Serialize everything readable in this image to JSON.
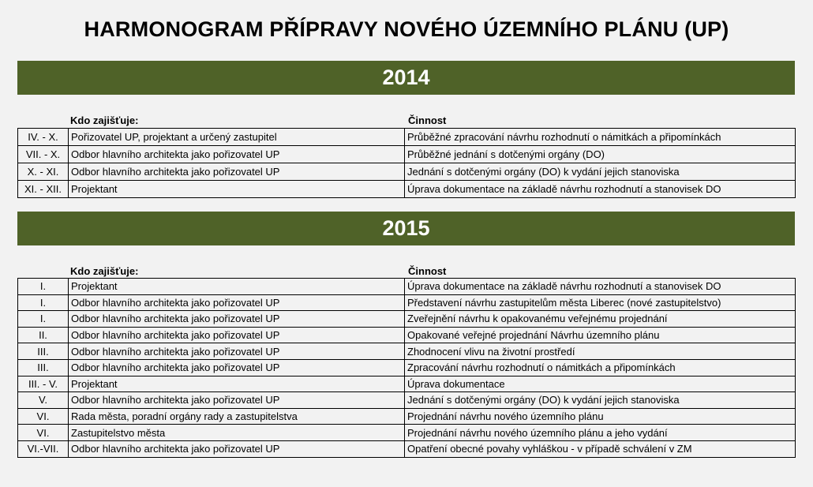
{
  "title": "HARMONOGRAM PŘÍPRAVY NOVÉHO ÚZEMNÍHO PLÁNU (UP)",
  "accent_color": "#4f6228",
  "sections": [
    {
      "year": "2014",
      "col_who": "Kdo zajišťuje:",
      "col_activity": "Činnost",
      "rows": [
        {
          "period": "IV. - X.",
          "who": "Pořizovatel UP, projektant a určený zastupitel",
          "activity": "Průběžné zpracování návrhu rozhodnutí o námitkách a připomínkách"
        },
        {
          "period": "VII. - X.",
          "who": "Odbor hlavního architekta jako pořizovatel UP",
          "activity": "Průběžné jednání s dotčenými orgány (DO)"
        },
        {
          "period": "X. - XI.",
          "who": "Odbor hlavního architekta jako pořizovatel UP",
          "activity": "Jednání s dotčenými orgány (DO) k vydání jejich stanoviska"
        },
        {
          "period": "XI. - XII.",
          "who": "Projektant",
          "activity": "Úprava dokumentace na základě návrhu rozhodnutí a stanovisek DO"
        }
      ]
    },
    {
      "year": "2015",
      "col_who": "Kdo zajišťuje:",
      "col_activity": "Činnost",
      "rows": [
        {
          "period": "I.",
          "who": "Projektant",
          "activity": "Úprava dokumentace na základě návrhu rozhodnutí a stanovisek DO"
        },
        {
          "period": "I.",
          "who": "Odbor hlavního architekta jako pořizovatel UP",
          "activity": "Představení návrhu zastupitelům města Liberec (nové zastupitelstvo)"
        },
        {
          "period": "I.",
          "who": "Odbor hlavního architekta jako pořizovatel UP",
          "activity": "Zveřejnění návrhu k opakovanému veřejnému projednání"
        },
        {
          "period": "II.",
          "who": "Odbor hlavního architekta jako pořizovatel UP",
          "activity": "Opakované veřejné projednání Návrhu územního plánu"
        },
        {
          "period": "III.",
          "who": "Odbor hlavního architekta jako pořizovatel UP",
          "activity": "Zhodnocení vlivu na životní prostředí"
        },
        {
          "period": "III.",
          "who": "Odbor hlavního architekta jako pořizovatel UP",
          "activity": "Zpracování návrhu rozhodnutí o námitkách a připomínkách"
        },
        {
          "period": "III. - V.",
          "who": "Projektant",
          "activity": "Úprava dokumentace"
        },
        {
          "period": "V.",
          "who": "Odbor hlavního architekta jako pořizovatel UP",
          "activity": "Jednání s dotčenými orgány (DO) k vydání jejich stanoviska"
        },
        {
          "period": "VI.",
          "who": "Rada města, poradní orgány rady a zastupitelstva",
          "activity": "Projednání návrhu nového územního plánu"
        },
        {
          "period": "VI.",
          "who": "Zastupitelstvo města",
          "activity": "Projednání návrhu nového územního plánu a jeho vydání"
        },
        {
          "period": "VI.-VII.",
          "who": "Odbor hlavního architekta jako pořizovatel UP",
          "activity": "Opatření obecné povahy vyhláškou - v případě schválení v ZM"
        }
      ]
    }
  ]
}
